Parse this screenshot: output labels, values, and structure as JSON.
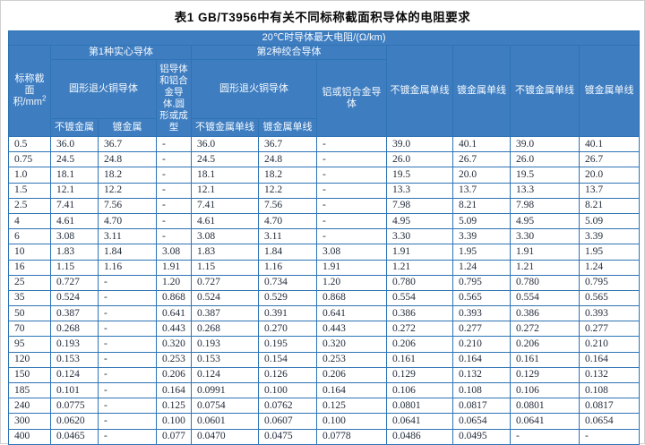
{
  "title": "表1  GB/T3956中有关不同标称截面积导体的电阻要求",
  "colors": {
    "header_bg": "#3e7dc0",
    "header_border": "#2a5c97",
    "grid_border": "#2e74b5",
    "header_text": "#f5faff",
    "data_text": "#232c3b"
  },
  "table": {
    "top_header": "20℃时导体最大电阻/(Ω/km)",
    "header": {
      "area_line1": "标称截",
      "area_line2": "面积/mm",
      "area_sup": "2",
      "group_solid": "第1种实心导体",
      "group_stranded": "第2种绞合导体",
      "copper_annealed_solid": "圆形退火铜导体",
      "aluminum_solid": "铝导体和铝合金导体,圆形或成型",
      "copper_annealed_stranded": "圆形退火铜导体",
      "aluminum_stranded": "铝或铝合金导体",
      "unplated": "不镀金属",
      "plated": "镀金属",
      "unplated_wire": "不镀金属单线",
      "plated_wire": "镀金属单线",
      "col8_unplated_wire": "不镀金属单线",
      "col9_plated_wire": "镀金属单线",
      "col10_unplated_wire": "不镀金属单线",
      "col11_plated_wire": "镀金属单线"
    },
    "rows": [
      [
        "0.5",
        "36.0",
        "36.7",
        "-",
        "36.0",
        "36.7",
        "-",
        "39.0",
        "40.1",
        "39.0",
        "40.1"
      ],
      [
        "0.75",
        "24.5",
        "24.8",
        "-",
        "24.5",
        "24.8",
        "-",
        "26.0",
        "26.7",
        "26.0",
        "26.7"
      ],
      [
        "1.0",
        "18.1",
        "18.2",
        "-",
        "18.1",
        "18.2",
        "-",
        "19.5",
        "20.0",
        "19.5",
        "20.0"
      ],
      [
        "1.5",
        "12.1",
        "12.2",
        "-",
        "12.1",
        "12.2",
        "-",
        "13.3",
        "13.7",
        "13.3",
        "13.7"
      ],
      [
        "2.5",
        "7.41",
        "7.56",
        "-",
        "7.41",
        "7.56",
        "-",
        "7.98",
        "8.21",
        "7.98",
        "8.21"
      ],
      [
        "4",
        "4.61",
        "4.70",
        "-",
        "4.61",
        "4.70",
        "-",
        "4.95",
        "5.09",
        "4.95",
        "5.09"
      ],
      [
        "6",
        "3.08",
        "3.11",
        "-",
        "3.08",
        "3.11",
        "-",
        "3.30",
        "3.39",
        "3.30",
        "3.39"
      ],
      [
        "10",
        "1.83",
        "1.84",
        "3.08",
        "1.83",
        "1.84",
        "3.08",
        "1.91",
        "1.95",
        "1.91",
        "1.95"
      ],
      [
        "16",
        "1.15",
        "1.16",
        "1.91",
        "1.15",
        "1.16",
        "1.91",
        "1.21",
        "1.24",
        "1.21",
        "1.24"
      ],
      [
        "25",
        "0.727",
        "-",
        "1.20",
        "0.727",
        "0.734",
        "1.20",
        "0.780",
        "0.795",
        "0.780",
        "0.795"
      ],
      [
        "35",
        "0.524",
        "-",
        "0.868",
        "0.524",
        "0.529",
        "0.868",
        "0.554",
        "0.565",
        "0.554",
        "0.565"
      ],
      [
        "50",
        "0.387",
        "-",
        "0.641",
        "0.387",
        "0.391",
        "0.641",
        "0.386",
        "0.393",
        "0.386",
        "0.393"
      ],
      [
        "70",
        "0.268",
        "-",
        "0.443",
        "0.268",
        "0.270",
        "0.443",
        "0.272",
        "0.277",
        "0.272",
        "0.277"
      ],
      [
        "95",
        "0.193",
        "-",
        "0.320",
        "0.193",
        "0.195",
        "0.320",
        "0.206",
        "0.210",
        "0.206",
        "0.210"
      ],
      [
        "120",
        "0.153",
        "-",
        "0.253",
        "0.153",
        "0.154",
        "0.253",
        "0.161",
        "0.164",
        "0.161",
        "0.164"
      ],
      [
        "150",
        "0.124",
        "-",
        "0.206",
        "0.124",
        "0.126",
        "0.206",
        "0.129",
        "0.132",
        "0.129",
        "0.132"
      ],
      [
        "185",
        "0.101",
        "-",
        "0.164",
        "0.0991",
        "0.100",
        "0.164",
        "0.106",
        "0.108",
        "0.106",
        "0.108"
      ],
      [
        "240",
        "0.0775",
        "-",
        "0.125",
        "0.0754",
        "0.0762",
        "0.125",
        "0.0801",
        "0.0817",
        "0.0801",
        "0.0817"
      ],
      [
        "300",
        "0.0620",
        "-",
        "0.100",
        "0.0601",
        "0.0607",
        "0.100",
        "0.0641",
        "0.0654",
        "0.0641",
        "0.0654"
      ],
      [
        "400",
        "0.0465",
        "-",
        "0.077",
        "0.0470",
        "0.0475",
        "0.0778",
        "0.0486",
        "0.0495",
        "-",
        "-"
      ]
    ]
  }
}
